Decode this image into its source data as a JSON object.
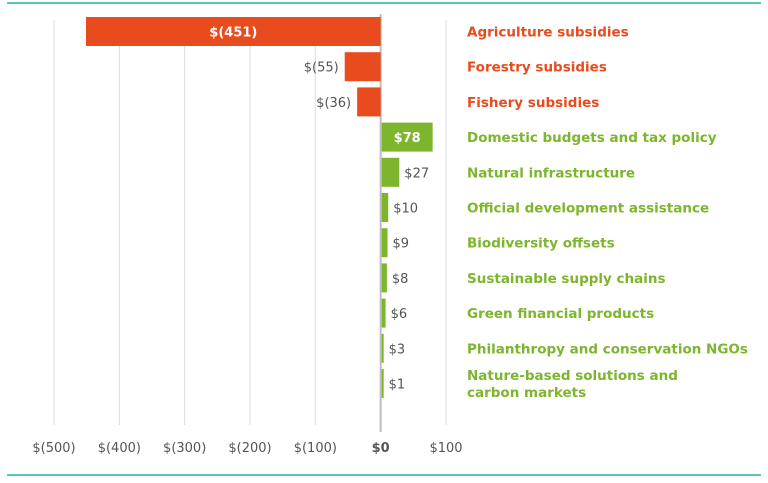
{
  "colors": {
    "negative": "#e84b1e",
    "positive": "#7db52d",
    "zero_line": "#bdbdbd",
    "grid": "#dcdcdc",
    "tick_text": "#555555",
    "rule": "#5ec4b6",
    "value_text_outside": "#555555",
    "value_text_inside": "#ffffff"
  },
  "chart_data": {
    "type": "bar",
    "orientation": "horizontal",
    "categories": [
      "Agriculture subsidies",
      "Forestry subsidies",
      "Fishery subsidies",
      "Domestic budgets and tax policy",
      "Natural infrastructure",
      "Official development assistance",
      "Biodiversity offsets",
      "Sustainable supply chains",
      "Green financial products",
      "Philanthropy and conservation NGOs",
      "Nature-based solutions and carbon markets"
    ],
    "category_lines": [
      [
        "Agriculture subsidies"
      ],
      [
        "Forestry subsidies"
      ],
      [
        "Fishery subsidies"
      ],
      [
        "Domestic budgets and tax policy"
      ],
      [
        "Natural infrastructure"
      ],
      [
        "Official development assistance"
      ],
      [
        "Biodiversity offsets"
      ],
      [
        "Sustainable supply chains"
      ],
      [
        "Green financial products"
      ],
      [
        "Philanthropy and conservation NGOs"
      ],
      [
        "Nature-based solutions and",
        "carbon markets"
      ]
    ],
    "values": [
      -451,
      -55,
      -36,
      78,
      27,
      10,
      9,
      8,
      6,
      3,
      1
    ],
    "value_labels": [
      "$(451)",
      "$(55)",
      "$(36)",
      "$78",
      "$27",
      "$10",
      "$9",
      "$8",
      "$6",
      "$3",
      "$1"
    ],
    "label_inside": [
      true,
      false,
      false,
      true,
      false,
      false,
      false,
      false,
      false,
      false,
      false
    ],
    "xlim": [
      -500,
      100
    ],
    "xticks": [
      -500,
      -400,
      -300,
      -200,
      -100,
      0,
      100
    ],
    "xtick_labels": [
      "$(500)",
      "$(400)",
      "$(300)",
      "$(200)",
      "$(100)",
      "$0",
      "$100"
    ],
    "grid": true,
    "legend": "none",
    "title": "",
    "xlabel": "",
    "ylabel": ""
  }
}
